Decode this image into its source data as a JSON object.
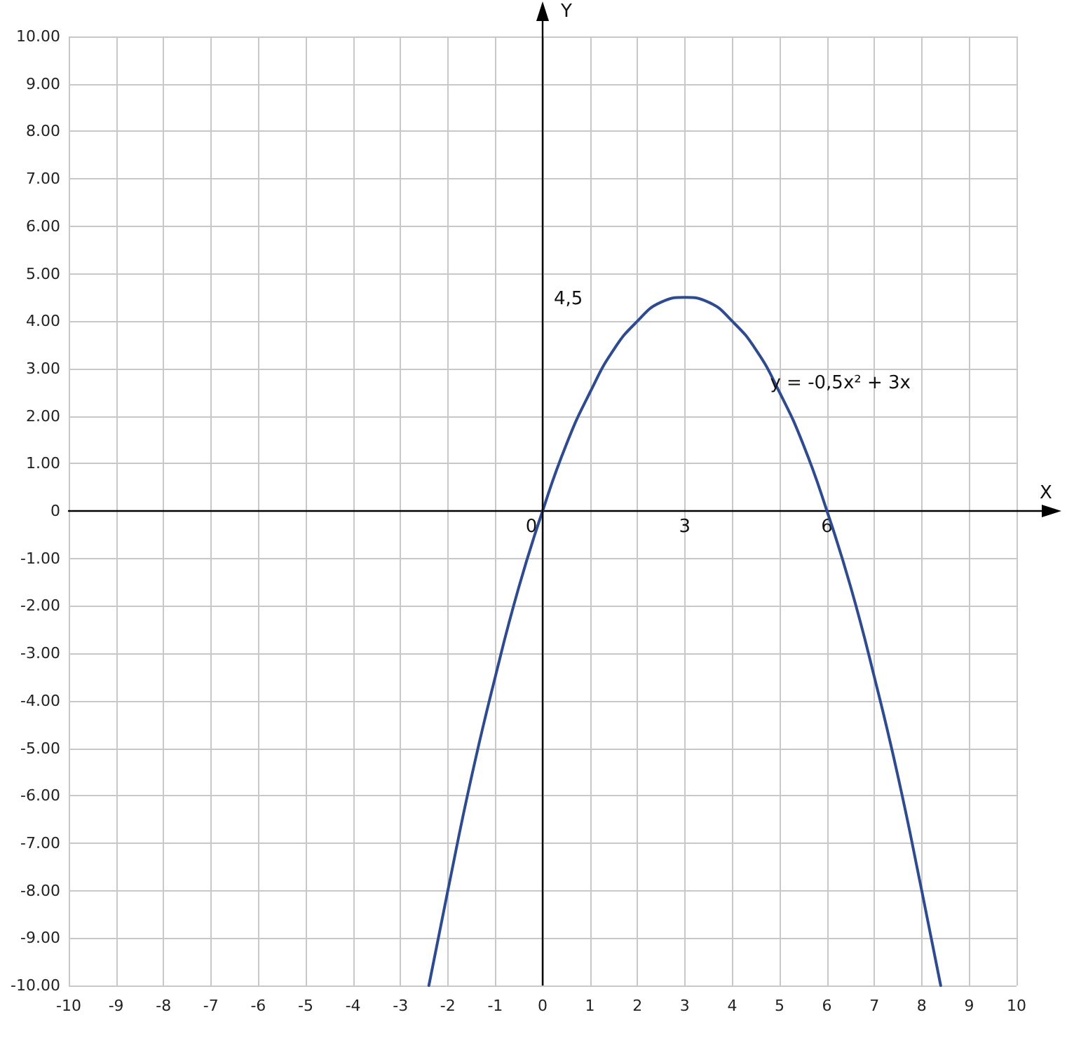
{
  "chart_data": {
    "type": "line",
    "xlabel": "X",
    "ylabel": "Y",
    "annotations": [
      "4,5",
      {
        "text": "y = -0,5x² + 3x",
        "x": 4.8,
        "y": 2.7
      }
    ],
    "x": [
      -2.4,
      -2,
      -1.5,
      -1,
      -0.5,
      0,
      0.5,
      1,
      1.5,
      2,
      2.5,
      3,
      3.5,
      4,
      4.5,
      5,
      5.5,
      6,
      6.5,
      7,
      7.5,
      8,
      8.4
    ],
    "series": [
      {
        "color": "#2f4b8f",
        "values": [
          -10,
          -8,
          -5.6,
          -3.5,
          -1.6,
          0,
          1.4,
          2.5,
          3.4,
          4,
          4.4,
          4.5,
          4.4,
          4,
          3.4,
          2.5,
          1.4,
          0,
          -1.6,
          -3.5,
          -5.6,
          -8,
          -10
        ]
      }
    ],
    "xlim": [
      -10,
      10
    ],
    "ylim": [
      -10,
      10
    ],
    "xticks": [
      -10,
      -9,
      -8,
      -7,
      -6,
      -5,
      -4,
      -3,
      -2,
      -1,
      0,
      1,
      2,
      3,
      4,
      5,
      6,
      7,
      8,
      9,
      10
    ],
    "yticks": [
      {
        "value": -10,
        "label": "-10.00"
      },
      {
        "value": -9,
        "label": "-9.00"
      },
      {
        "value": -8,
        "label": "-8.00"
      },
      {
        "value": -7,
        "label": "-7.00"
      },
      {
        "value": -6,
        "label": "-6.00"
      },
      {
        "value": -5,
        "label": "-5.00"
      },
      {
        "value": -4,
        "label": "-4.00"
      },
      {
        "value": -3,
        "label": "-3.00"
      },
      {
        "value": -2,
        "label": "-2.00"
      },
      {
        "value": -1,
        "label": "-1.00"
      },
      0,
      {
        "value": 1,
        "label": "1.00"
      },
      {
        "value": 2,
        "label": "2.00"
      },
      {
        "value": 3,
        "label": "3.00"
      },
      {
        "value": 4,
        "label": "4.00"
      },
      {
        "value": 5,
        "label": "5.00"
      },
      {
        "value": 6,
        "label": "6.00"
      },
      {
        "value": 7,
        "label": "7.00"
      },
      {
        "value": 8,
        "label": "8.00"
      },
      {
        "value": 9,
        "label": "9.00"
      },
      {
        "value": 10,
        "label": "10.00"
      }
    ],
    "x2lim": [
      -10,
      10
    ],
    "x2ticks": [
      0,
      3,
      6
    ],
    "grid": true,
    "marker": "none",
    "line_style": "solid"
  }
}
